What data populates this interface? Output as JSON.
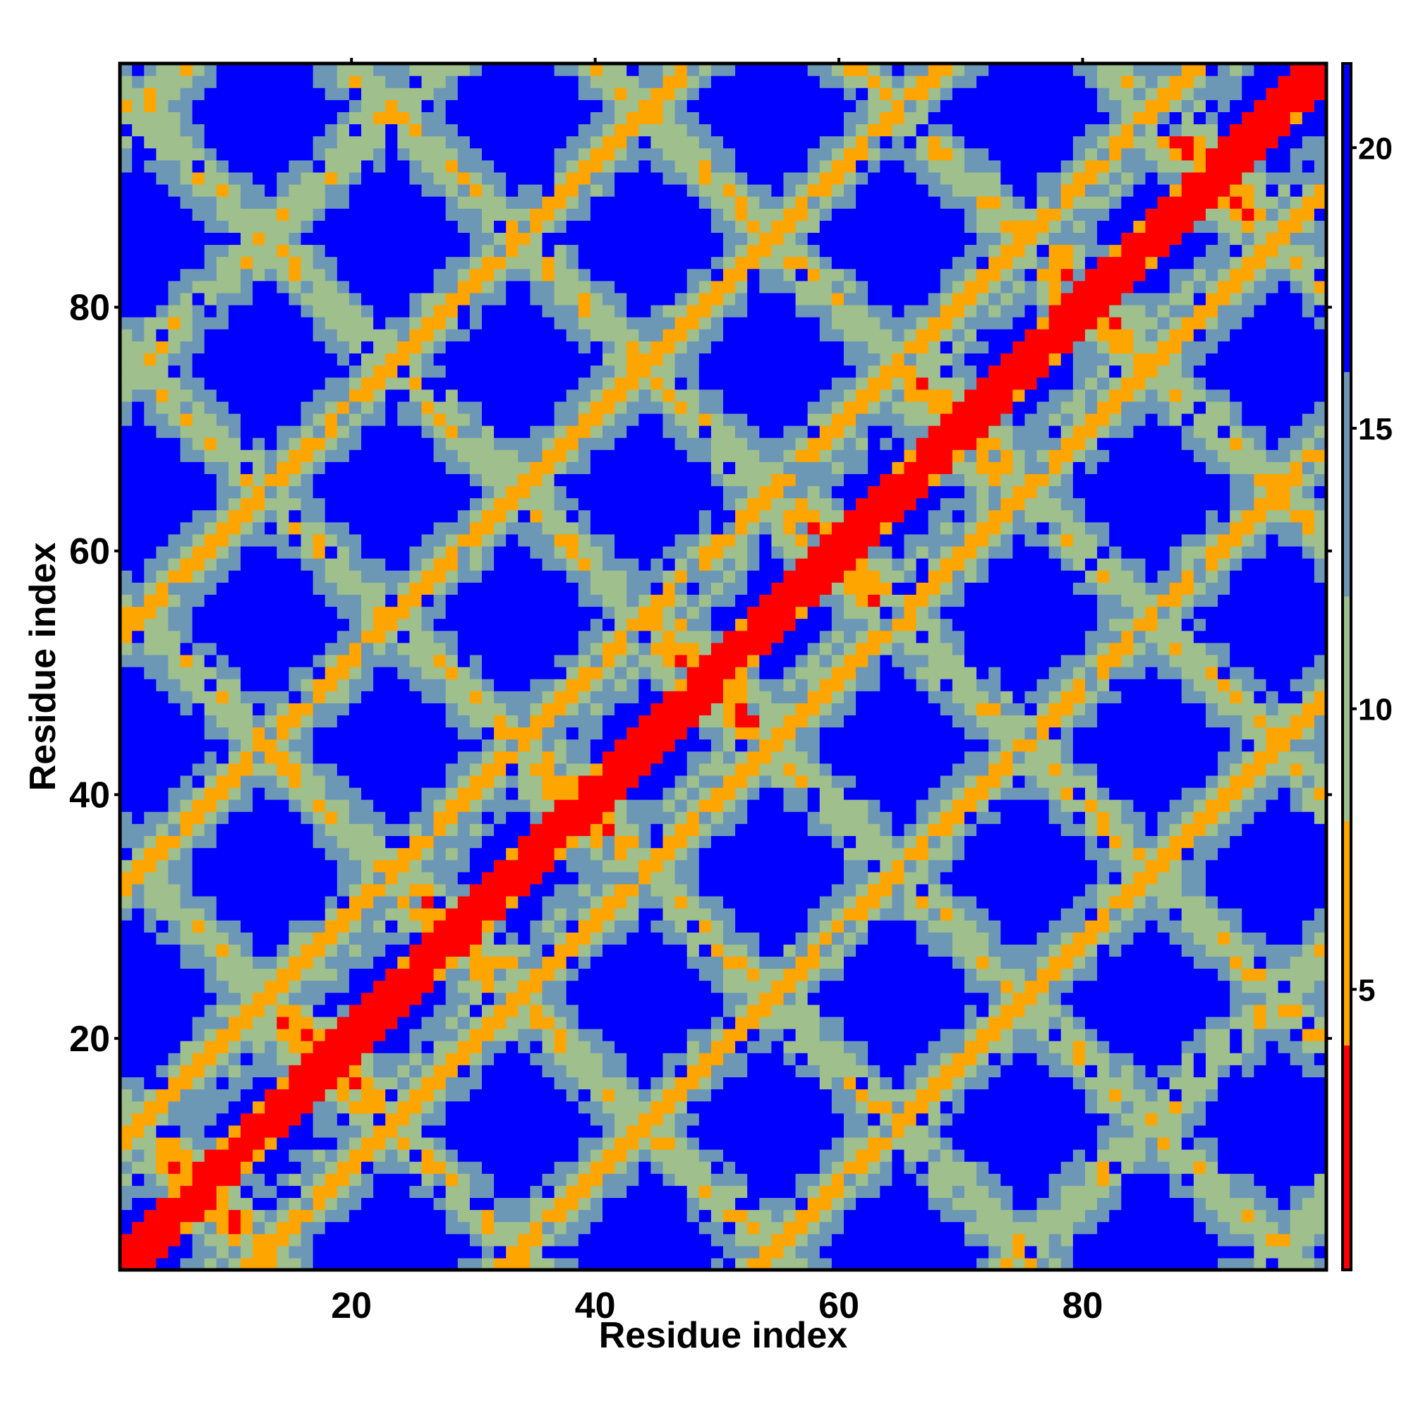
{
  "chart_data": {
    "type": "heatmap",
    "title": "",
    "xlabel": "Residue index",
    "ylabel": "Residue index",
    "n_residues": 100,
    "xlim": [
      1,
      100
    ],
    "ylim": [
      1,
      100
    ],
    "x_ticks": [
      20,
      40,
      60,
      80
    ],
    "y_ticks": [
      20,
      40,
      60,
      80
    ],
    "colorbar": {
      "ticks": [
        5,
        10,
        15,
        20
      ],
      "range": [
        0,
        21.5
      ],
      "bands": [
        {
          "min": 0,
          "max": 4,
          "color": "#ff0000"
        },
        {
          "min": 4,
          "max": 8,
          "color": "#ffa500"
        },
        {
          "min": 8,
          "max": 12,
          "color": "#9fbf8c"
        },
        {
          "min": 12,
          "max": 16,
          "color": "#6c98b6"
        },
        {
          "min": 16,
          "max": 21.5,
          "color": "#0000ff"
        }
      ]
    },
    "pattern": {
      "description_values": {
        "main_diagonal": "i == j, distance near 0",
        "helix_period": 21,
        "helix_phase": 4
      }
    },
    "grid": false,
    "legend": "colorbar-right"
  },
  "labels": {
    "x_axis_title": "Residue index",
    "y_axis_title": "Residue index",
    "x_ticks": [
      "20",
      "40",
      "60",
      "80"
    ],
    "y_ticks": [
      "20",
      "40",
      "60",
      "80"
    ],
    "cbar_ticks": [
      "5",
      "10",
      "15",
      "20"
    ]
  }
}
